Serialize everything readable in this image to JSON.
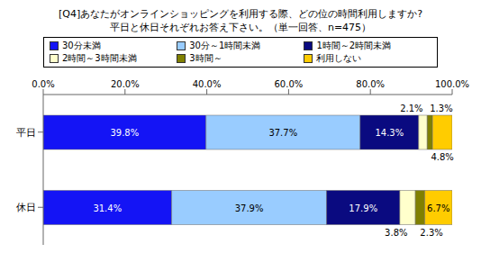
{
  "chart_data": {
    "type": "bar",
    "orientation": "horizontal",
    "stacked": true,
    "data_labels": true,
    "grid": false,
    "legend": "top",
    "title": "[Q4]あなたがオンラインショッピングを利用する際、どの位の時間利用しますか?\n平日と休日それぞれお答え下さい。（単一回答、n=475）",
    "categories": [
      "平日",
      "休日"
    ],
    "xlim": [
      0,
      100
    ],
    "xticks": [
      {
        "value": 0,
        "label": "0.0%"
      },
      {
        "value": 20,
        "label": "20.0%"
      },
      {
        "value": 40,
        "label": "40.0%"
      },
      {
        "value": 60,
        "label": "60.0%"
      },
      {
        "value": 80,
        "label": "80.0%"
      },
      {
        "value": 100,
        "label": "100.0%"
      }
    ],
    "series": [
      {
        "name": "30分未満",
        "color": "#1414f5",
        "values": [
          39.8,
          31.4
        ],
        "value_labels": [
          "39.8%",
          "31.4%"
        ]
      },
      {
        "name": "30分～1時間未満",
        "color": "#99ccff",
        "values": [
          37.7,
          37.9
        ],
        "value_labels": [
          "37.7%",
          "37.9%"
        ]
      },
      {
        "name": "1時間～2時間未満",
        "color": "#0a0a80",
        "values": [
          14.3,
          17.9
        ],
        "value_labels": [
          "14.3%",
          "17.9%"
        ]
      },
      {
        "name": "2時間～3時間未満",
        "color": "#ffffcc",
        "values": [
          2.1,
          3.8
        ],
        "value_labels": [
          "2.1%",
          "3.8%"
        ]
      },
      {
        "name": "3時間～",
        "color": "#808000",
        "values": [
          1.3,
          2.3
        ],
        "value_labels": [
          "1.3%",
          "2.3%"
        ]
      },
      {
        "name": "利用しない",
        "color": "#ffcc00",
        "values": [
          4.8,
          6.7
        ],
        "value_labels": [
          "4.8%",
          "6.7%"
        ]
      }
    ]
  }
}
